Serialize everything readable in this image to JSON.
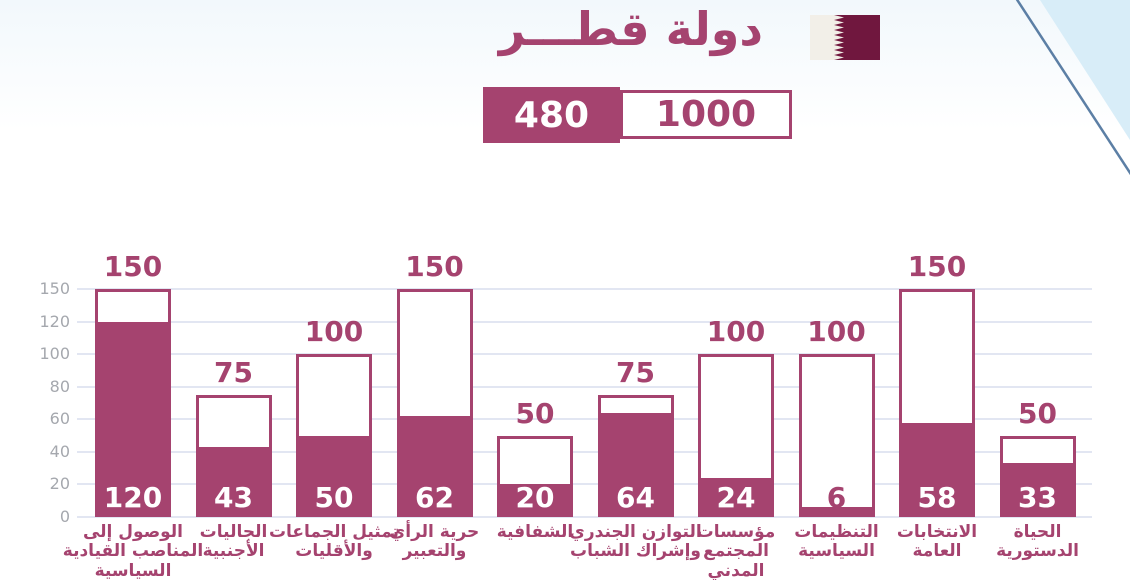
{
  "header": {
    "title": "دولة قطـــر",
    "flag": "qatar-flag",
    "score_box": {
      "achieved": "480",
      "total": "1000"
    }
  },
  "colors": {
    "accent": "#A5436F",
    "flag_maroon": "#70173E",
    "flag_white": "#F2EFE8",
    "gridline": "#E2E6F2",
    "tick_text": "#A5A8AE",
    "value_text": "#FFFFFF",
    "corner_triangle": "#D8EDF8",
    "corner_line": "#5C7FA5",
    "bg_tint": "#F2F8FC"
  },
  "chart_data": {
    "type": "bar",
    "title": "دولة قطـــر",
    "xlabel": "",
    "ylabel": "",
    "ylim": [
      0,
      150
    ],
    "yticks": [
      0,
      20,
      40,
      60,
      80,
      100,
      120,
      150
    ],
    "grid": true,
    "legend": false,
    "totals": {
      "achieved": 480,
      "maximum": 1000
    },
    "bars": [
      {
        "label": "الوصول إلى المناصب القيادية السياسية",
        "label_lines": [
          "الوصول إلى",
          "المناصب القيادية",
          "السياسية"
        ],
        "value": 120,
        "max": 150
      },
      {
        "label": "الجاليات الأجنبية",
        "label_lines": [
          "الجاليات",
          "الأجنبية"
        ],
        "value": 43,
        "max": 75
      },
      {
        "label": "تمثيل الجماعات والأقليات",
        "label_lines": [
          "تمثيل الجماعات",
          "والأقليات"
        ],
        "value": 50,
        "max": 100
      },
      {
        "label": "حرية الرأي والتعبير",
        "label_lines": [
          "حرية الرأي",
          "والتعبير"
        ],
        "value": 62,
        "max": 150
      },
      {
        "label": "الشفافية",
        "label_lines": [
          "الشفافية"
        ],
        "value": 20,
        "max": 50
      },
      {
        "label": "التوازن الجندري وإشراك الشباب",
        "label_lines": [
          "التوازن الجندري",
          "وإشراك الشباب"
        ],
        "value": 64,
        "max": 75
      },
      {
        "label": "مؤسسات المجتمع المدني",
        "label_lines": [
          "مؤسسات",
          "المجتمع",
          "المدني"
        ],
        "value": 24,
        "max": 100
      },
      {
        "label": "التنظيمات السياسية",
        "label_lines": [
          "التنظيمات",
          "السياسية"
        ],
        "value": 6,
        "max": 100
      },
      {
        "label": "الانتخابات العامة",
        "label_lines": [
          "الانتخابات",
          "العامة"
        ],
        "value": 58,
        "max": 150
      },
      {
        "label": "الحياة الدستورية",
        "label_lines": [
          "الحياة",
          "الدستورية"
        ],
        "value": 33,
        "max": 50
      }
    ]
  }
}
